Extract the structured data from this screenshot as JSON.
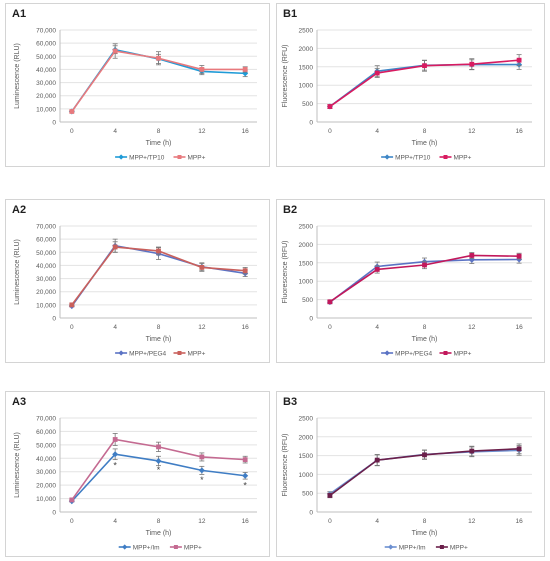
{
  "chart_data": [
    {
      "panel": "A1",
      "type": "line",
      "x": [
        0,
        4,
        8,
        12,
        16
      ],
      "xlabel": "Time (h)",
      "ylabel": "Luminescence (RLU)",
      "ylim": [
        0,
        70000
      ],
      "yticks": [
        "0",
        "10,000",
        "20,000",
        "30,000",
        "40,000",
        "50,000",
        "60,000",
        "70,000"
      ],
      "grid": true,
      "legend": "bottom",
      "series": [
        {
          "name": "MPP+/TP10",
          "color": "#1f9bd7",
          "marker": "diamond",
          "values": [
            8000,
            55000,
            48000,
            38500,
            37000
          ],
          "err": [
            500,
            3000,
            3500,
            2500,
            2500
          ]
        },
        {
          "name": "MPP+",
          "color": "#e8797d",
          "marker": "square",
          "values": [
            8000,
            54000,
            48500,
            40000,
            40000
          ],
          "err": [
            500,
            5500,
            5000,
            3000,
            2000
          ]
        }
      ],
      "annotations": []
    },
    {
      "panel": "B1",
      "type": "line",
      "x": [
        0,
        4,
        8,
        12,
        16
      ],
      "xlabel": "Time (h)",
      "ylabel": "Fluorescence (RFU)",
      "ylim": [
        0,
        2500
      ],
      "yticks": [
        "0",
        "500",
        "1000",
        "1500",
        "2000",
        "2500"
      ],
      "grid": true,
      "legend": "bottom",
      "series": [
        {
          "name": "MPP+/TP10",
          "color": "#3e86c6",
          "marker": "diamond",
          "values": [
            420,
            1380,
            1540,
            1560,
            1560
          ],
          "err": [
            50,
            150,
            130,
            130,
            130
          ]
        },
        {
          "name": "MPP+",
          "color": "#d81b60",
          "marker": "square",
          "values": [
            420,
            1330,
            1530,
            1570,
            1680
          ],
          "err": [
            50,
            120,
            150,
            150,
            150
          ]
        }
      ],
      "annotations": []
    },
    {
      "panel": "A2",
      "type": "line",
      "x": [
        0,
        4,
        8,
        12,
        16
      ],
      "xlabel": "Time (h)",
      "ylabel": "Luminescence (RLU)",
      "ylim": [
        0,
        70000
      ],
      "yticks": [
        "0",
        "10,000",
        "20,000",
        "30,000",
        "40,000",
        "50,000",
        "60,000",
        "70,000"
      ],
      "grid": true,
      "legend": "bottom",
      "series": [
        {
          "name": "MPP+/PEG4",
          "color": "#5b73c4",
          "marker": "diamond",
          "values": [
            9000,
            55000,
            49000,
            39000,
            34000
          ],
          "err": [
            500,
            5000,
            4500,
            3000,
            2500
          ]
        },
        {
          "name": "MPP+",
          "color": "#c9605c",
          "marker": "square",
          "values": [
            10000,
            54000,
            51000,
            38500,
            36000
          ],
          "err": [
            500,
            4000,
            3000,
            3000,
            2500
          ]
        }
      ],
      "annotations": []
    },
    {
      "panel": "B2",
      "type": "line",
      "x": [
        0,
        4,
        8,
        12,
        16
      ],
      "xlabel": "Time (h)",
      "ylabel": "Fluorescence (RFU)",
      "ylim": [
        0,
        2500
      ],
      "yticks": [
        "0",
        "500",
        "1000",
        "1500",
        "2000",
        "2500"
      ],
      "grid": true,
      "legend": "bottom",
      "series": [
        {
          "name": "MPP+/PEG4",
          "color": "#5b73c4",
          "marker": "diamond",
          "values": [
            430,
            1400,
            1530,
            1580,
            1590
          ],
          "err": [
            40,
            120,
            100,
            100,
            100
          ]
        },
        {
          "name": "MPP+",
          "color": "#c2185b",
          "marker": "square",
          "values": [
            440,
            1320,
            1440,
            1700,
            1680
          ],
          "err": [
            40,
            100,
            100,
            80,
            80
          ]
        }
      ],
      "annotations": []
    },
    {
      "panel": "A3",
      "type": "line",
      "x": [
        0,
        4,
        8,
        12,
        16
      ],
      "xlabel": "Time (h)",
      "ylabel": "Luminescence (RLU)",
      "ylim": [
        0,
        70000
      ],
      "yticks": [
        "0",
        "10,000",
        "20,000",
        "30,000",
        "40,000",
        "50,000",
        "60,000",
        "70,000"
      ],
      "grid": true,
      "legend": "bottom",
      "series": [
        {
          "name": "MPP+/Im",
          "color": "#3f7dc4",
          "marker": "diamond",
          "values": [
            8000,
            43000,
            38000,
            31000,
            27000
          ],
          "err": [
            500,
            4000,
            3500,
            3000,
            2500
          ]
        },
        {
          "name": "MPP+",
          "color": "#c46a91",
          "marker": "square",
          "values": [
            9000,
            54000,
            48500,
            41000,
            39000
          ],
          "err": [
            500,
            4500,
            3500,
            3000,
            2500
          ]
        }
      ],
      "annotations": [
        {
          "x": 4,
          "y": 35500,
          "text": "*"
        },
        {
          "x": 8,
          "y": 32000,
          "text": "*"
        },
        {
          "x": 12,
          "y": 24500,
          "text": "*"
        },
        {
          "x": 16,
          "y": 20500,
          "text": "*"
        }
      ]
    },
    {
      "panel": "B3",
      "type": "line",
      "x": [
        0,
        4,
        8,
        12,
        16
      ],
      "xlabel": "Time (h)",
      "ylabel": "Fluorescence (RFU)",
      "ylim": [
        0,
        2500
      ],
      "yticks": [
        "0",
        "500",
        "1000",
        "1500",
        "2000",
        "2500"
      ],
      "grid": true,
      "legend": "bottom",
      "series": [
        {
          "name": "MPP+/Im",
          "color": "#6c8fd0",
          "marker": "diamond",
          "values": [
            480,
            1380,
            1530,
            1600,
            1640
          ],
          "err": [
            60,
            150,
            120,
            130,
            130
          ]
        },
        {
          "name": "MPP+",
          "color": "#6b1f4a",
          "marker": "square",
          "values": [
            440,
            1380,
            1520,
            1620,
            1680
          ],
          "err": [
            60,
            140,
            120,
            130,
            130
          ]
        }
      ],
      "annotations": []
    }
  ]
}
